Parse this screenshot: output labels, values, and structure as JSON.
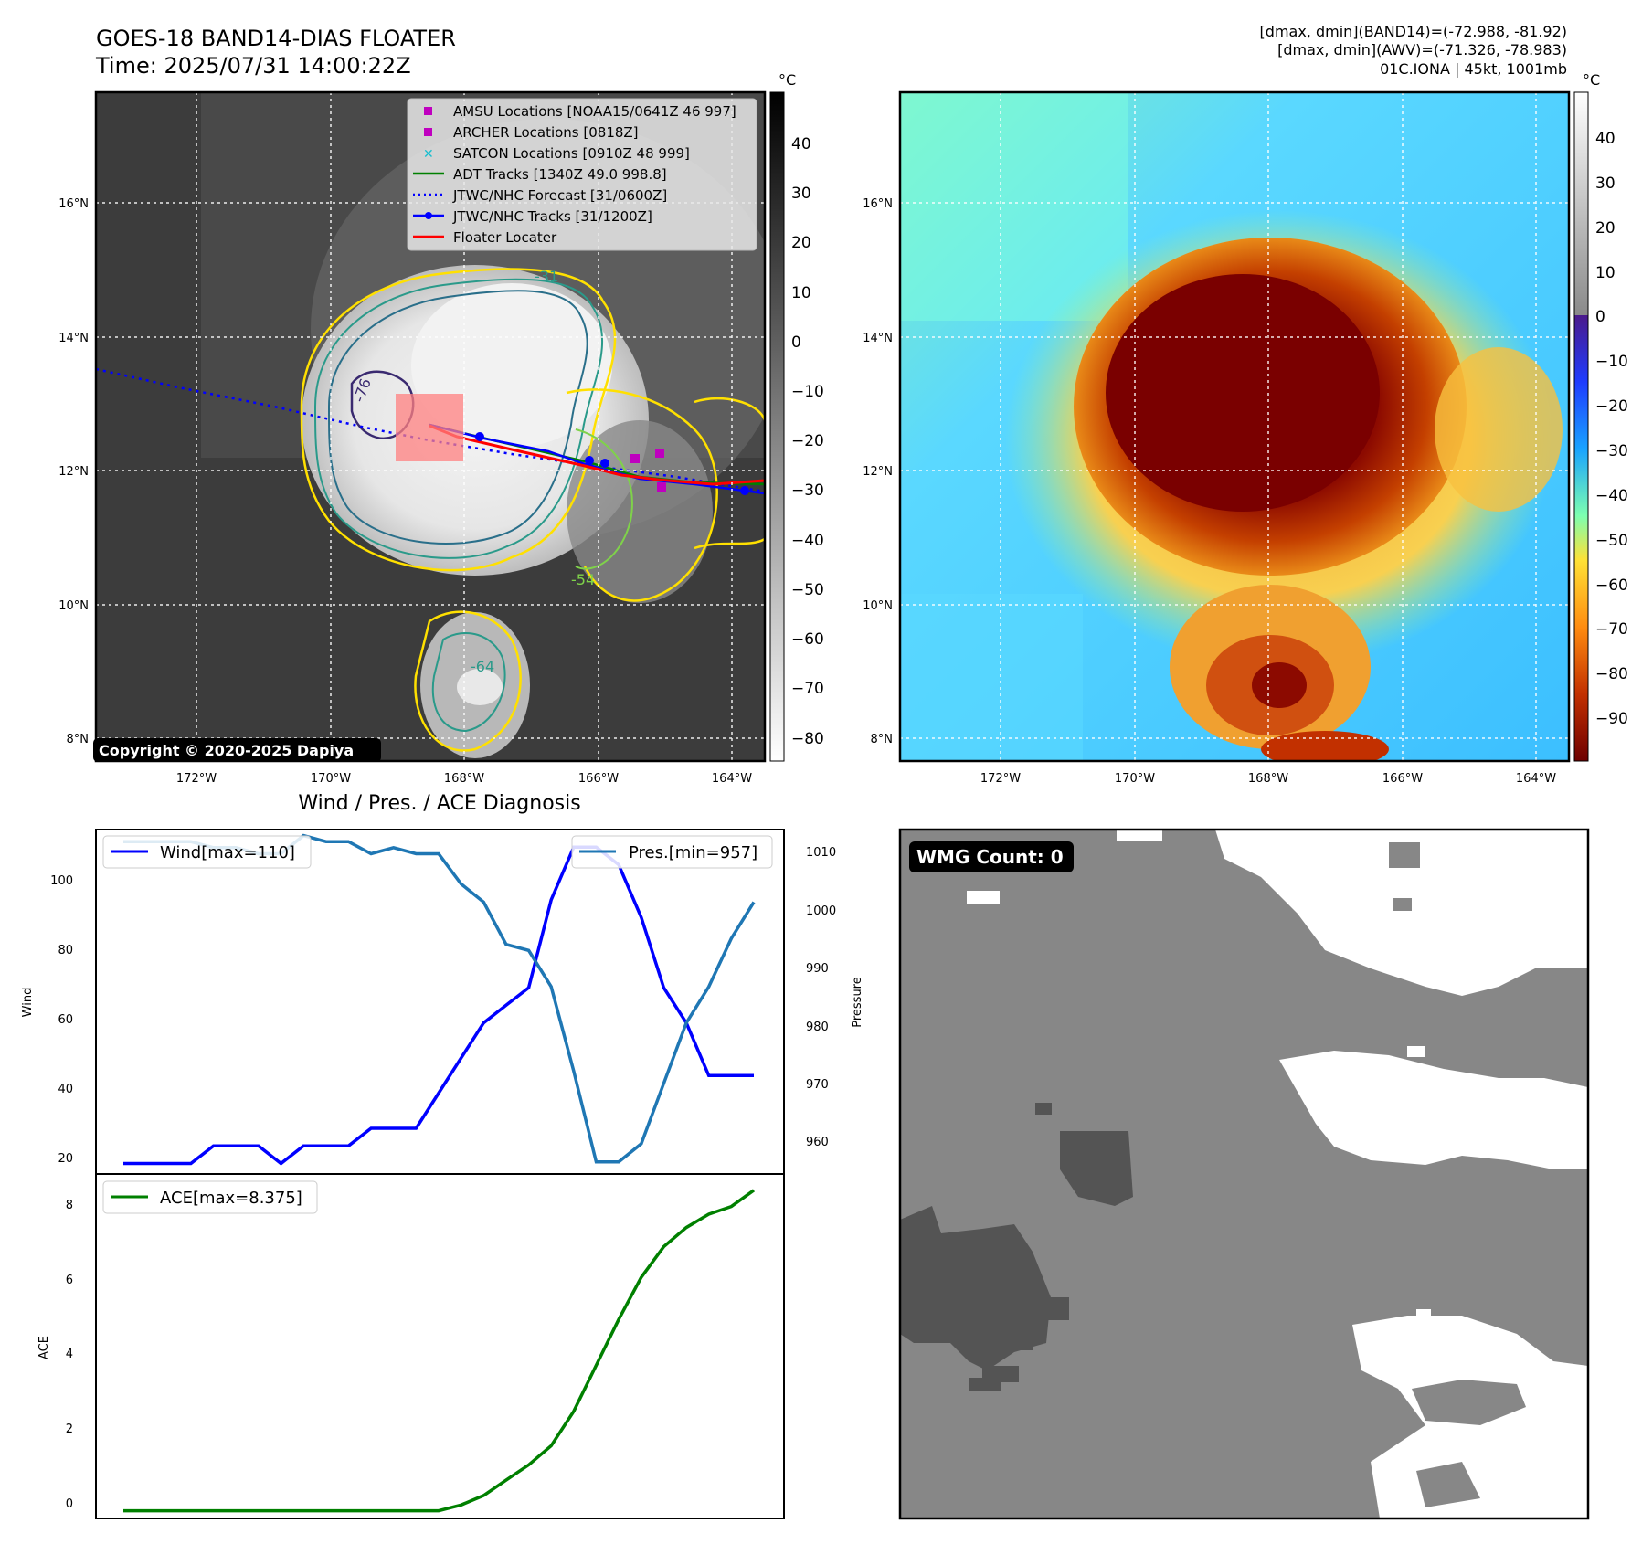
{
  "header": {
    "title": "GOES-18 BAND14-DIAS FLOATER",
    "time": "Time: 2025/07/31 14:00:22Z",
    "dmax_band14": "[dmax, dmin](BAND14)=(-72.988, -81.92)",
    "dmax_awv": "[dmax, dmin](AWV)=(-71.326, -78.983)",
    "storm": "01C.IONA | 45kt, 1001mb"
  },
  "copyright": "Copyright © 2020-2025 Dapiya",
  "maps": {
    "lat_labels": [
      "16°N",
      "14°N",
      "12°N",
      "10°N",
      "8°N"
    ],
    "lon_labels": [
      "172°W",
      "170°W",
      "168°W",
      "166°W",
      "164°W"
    ],
    "colorbar_unit": "°C",
    "ir_colorbar_ticks": [
      "40",
      "30",
      "20",
      "10",
      "0",
      "−10",
      "−20",
      "−30",
      "−40",
      "−50",
      "−60",
      "−70",
      "−80"
    ],
    "awv_colorbar_ticks": [
      "40",
      "30",
      "20",
      "10",
      "0",
      "−10",
      "−20",
      "−30",
      "−40",
      "−50",
      "−60",
      "−70",
      "−80",
      "−90"
    ],
    "contour_labels": [
      "-31",
      "-76",
      "-54",
      "-64"
    ]
  },
  "legend": {
    "items": [
      {
        "label": "AMSU Locations [NOAA15/0641Z 46 997]",
        "color": "#bf00bf",
        "marker": "square"
      },
      {
        "label": "ARCHER Locations [0818Z]",
        "color": "#bf00bf",
        "marker": "square"
      },
      {
        "label": "SATCON Locations [0910Z 48 999]",
        "color": "#17becf",
        "marker": "x"
      },
      {
        "label": "ADT Tracks [1340Z 49.0 998.8]",
        "color": "#008000",
        "marker": "line"
      },
      {
        "label": "JTWC/NHC Forecast [31/0600Z]",
        "color": "#0000ff",
        "marker": "dotted"
      },
      {
        "label": "JTWC/NHC Tracks [31/1200Z]",
        "color": "#0000ff",
        "marker": "line-dot"
      },
      {
        "label": "Floater Locater",
        "color": "#ff0000",
        "marker": "line"
      }
    ]
  },
  "diagnosis": {
    "title": "Wind / Pres. / ACE Diagnosis",
    "wind_ylabel": "Wind",
    "pres_ylabel": "Pressure",
    "ace_ylabel": "ACE",
    "wind_legend": "Wind[max=110]",
    "pres_legend": "Pres.[min=957]",
    "ace_legend": "ACE[max=8.375]",
    "wind_ticks": [
      "20",
      "40",
      "60",
      "80",
      "100"
    ],
    "pres_ticks": [
      "960",
      "970",
      "980",
      "990",
      "1000",
      "1010"
    ],
    "ace_ticks": [
      "0",
      "2",
      "4",
      "6",
      "8"
    ]
  },
  "wmg": {
    "badge": "WMG Count: 0"
  },
  "chart_data": [
    {
      "type": "line",
      "name": "wind",
      "x": [
        0,
        1,
        2,
        3,
        4,
        5,
        6,
        7,
        8,
        9,
        10,
        11,
        12,
        13,
        14,
        15,
        16,
        17,
        18,
        19,
        20,
        21,
        22,
        23,
        24,
        25,
        26,
        27,
        28
      ],
      "series": [
        {
          "name": "Wind[max=110]",
          "color": "#0000ff",
          "values": [
            20,
            20,
            20,
            20,
            25,
            25,
            25,
            20,
            25,
            25,
            25,
            30,
            30,
            30,
            40,
            50,
            60,
            65,
            70,
            95,
            110,
            110,
            105,
            90,
            70,
            60,
            45,
            45,
            45
          ]
        }
      ],
      "ylim": [
        17,
        115
      ],
      "ylabel": "Wind"
    },
    {
      "type": "line",
      "name": "pressure",
      "x": [
        0,
        1,
        2,
        3,
        4,
        5,
        6,
        7,
        8,
        9,
        10,
        11,
        12,
        13,
        14,
        15,
        16,
        17,
        18,
        19,
        20,
        21,
        22,
        23,
        24,
        25,
        26,
        27,
        28
      ],
      "series": [
        {
          "name": "Pres.[min=957]",
          "color": "#1f77b4",
          "values": [
            1010,
            1010,
            1010,
            1010,
            1009,
            1009,
            1008,
            1008,
            1011,
            1010,
            1010,
            1008,
            1009,
            1008,
            1008,
            1003,
            1000,
            993,
            992,
            986,
            972,
            957,
            957,
            960,
            970,
            980,
            986,
            994,
            1000
          ]
        }
      ],
      "ylim": [
        955,
        1012
      ],
      "ylabel": "Pressure"
    },
    {
      "type": "line",
      "name": "ace",
      "x": [
        0,
        1,
        2,
        3,
        4,
        5,
        6,
        7,
        8,
        9,
        10,
        11,
        12,
        13,
        14,
        15,
        16,
        17,
        18,
        19,
        20,
        21,
        22,
        23,
        24,
        25,
        26,
        27,
        28
      ],
      "series": [
        {
          "name": "ACE[max=8.375]",
          "color": "#008000",
          "values": [
            0,
            0,
            0,
            0,
            0,
            0,
            0,
            0,
            0,
            0,
            0,
            0,
            0,
            0,
            0,
            0.15,
            0.4,
            0.8,
            1.2,
            1.7,
            2.6,
            3.8,
            5.0,
            6.1,
            6.9,
            7.4,
            7.75,
            7.95,
            8.375
          ]
        }
      ],
      "ylim": [
        -0.2,
        8.8
      ],
      "ylabel": "ACE"
    }
  ]
}
